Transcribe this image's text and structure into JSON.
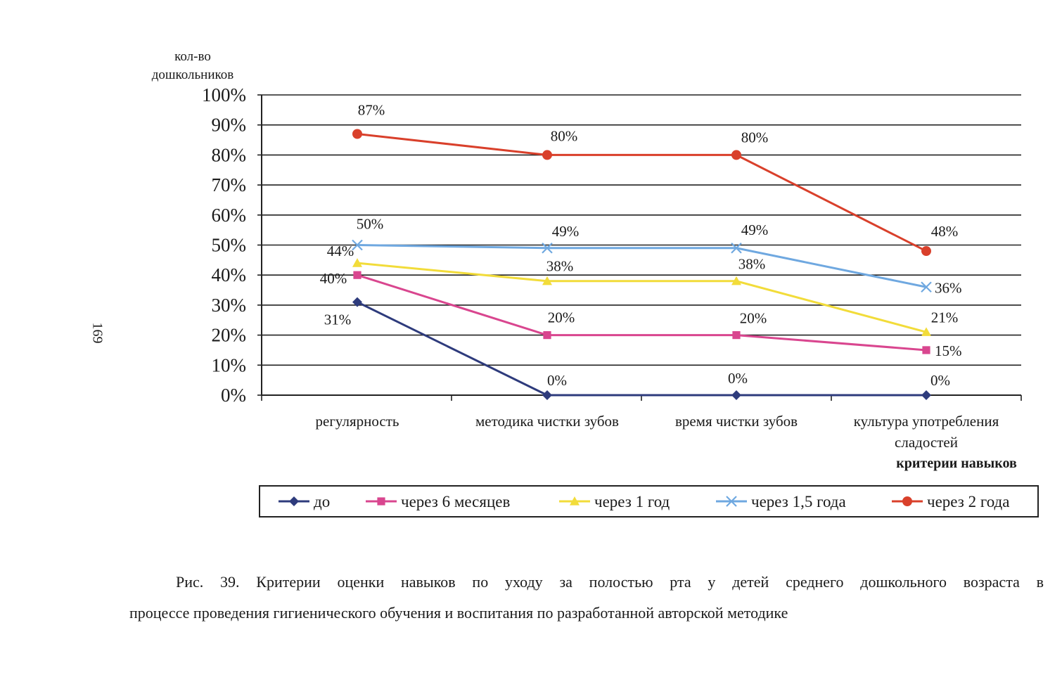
{
  "page_number": "169",
  "caption": {
    "line1": "Рис. 39. Критерии оценки навыков по уходу за полостью рта у детей среднего дошкольного возраста в",
    "line2": "процессе проведения гигиенического обучения и воспитания по разработанной авторской методике"
  },
  "chart_data": {
    "type": "line",
    "ylabel_line1": "кол-во",
    "ylabel_line2": "дошкольников",
    "xlabel": "критерии навыков",
    "categories": [
      [
        "регулярность"
      ],
      [
        "методика чистки зубов"
      ],
      [
        "время чистки зубов"
      ],
      [
        "культура употребления",
        "сладостей"
      ]
    ],
    "yticks": [
      "0%",
      "10%",
      "20%",
      "30%",
      "40%",
      "50%",
      "60%",
      "70%",
      "80%",
      "90%",
      "100%"
    ],
    "ylim": [
      0,
      100
    ],
    "grid": true,
    "legend_position": "bottom",
    "series": [
      {
        "name": "до",
        "values": [
          31,
          0,
          0,
          0
        ],
        "labels": [
          "31%",
          "0%",
          "0%",
          "0%"
        ],
        "color": "#2e3b7c",
        "marker": "diamond"
      },
      {
        "name": "через 6 месяцев",
        "values": [
          40,
          20,
          20,
          15
        ],
        "labels": [
          "40%",
          "20%",
          "20%",
          "15%"
        ],
        "color": "#d9468f",
        "marker": "square"
      },
      {
        "name": "через 1 год",
        "values": [
          44,
          38,
          38,
          21
        ],
        "labels": [
          "44%",
          "38%",
          "38%",
          "21%"
        ],
        "color": "#f2dc3a",
        "marker": "triangle"
      },
      {
        "name": "через 1,5 года",
        "values": [
          50,
          49,
          49,
          36
        ],
        "labels": [
          "50%",
          "49%",
          "49%",
          "36%"
        ],
        "color": "#6fa8e0",
        "marker": "x"
      },
      {
        "name": "через 2 года",
        "values": [
          87,
          80,
          80,
          48
        ],
        "labels": [
          "87%",
          "80%",
          "80%",
          "48%"
        ],
        "color": "#d9402b",
        "marker": "circle"
      }
    ]
  }
}
